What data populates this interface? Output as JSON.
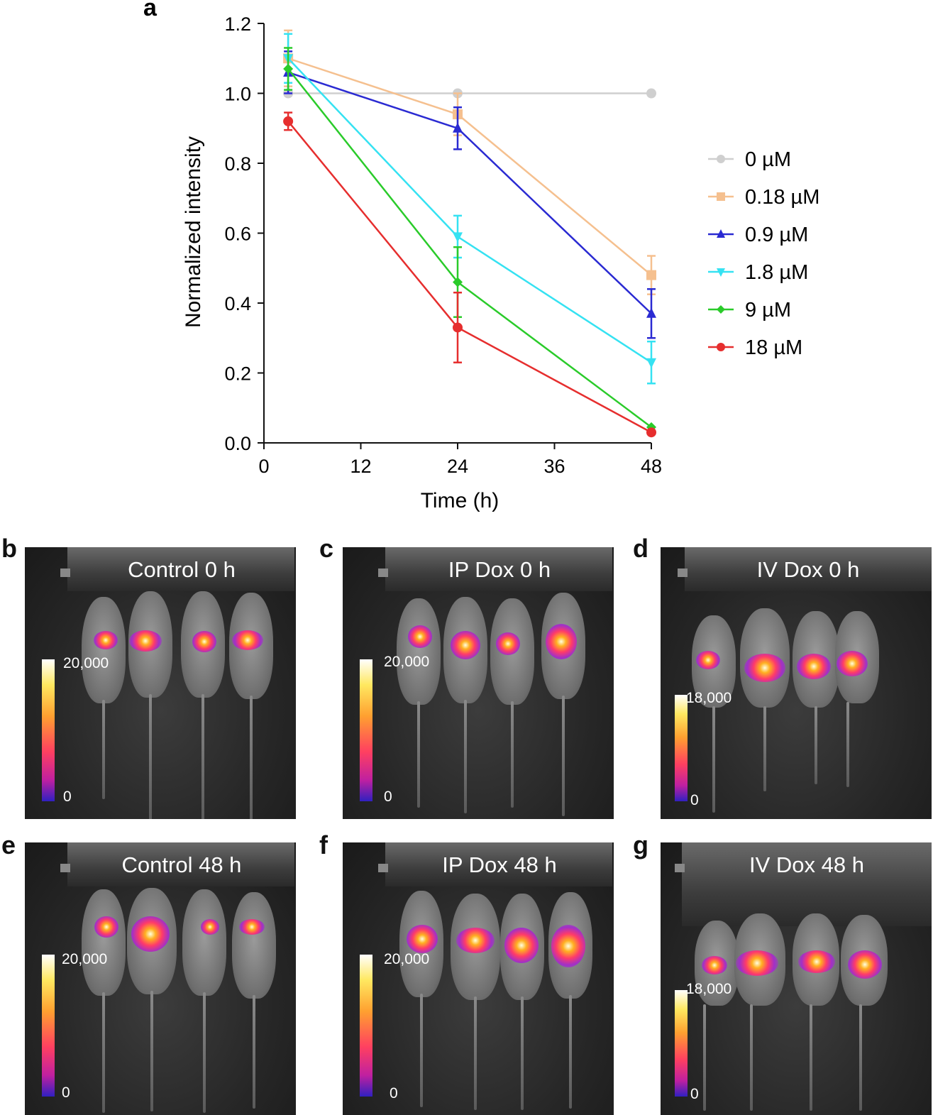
{
  "chart_data": {
    "type": "line",
    "panel_label": "a",
    "xlabel": "Time (h)",
    "ylabel": "Normalized intensity",
    "xlim": [
      0,
      48
    ],
    "ylim": [
      0,
      1.2
    ],
    "xticks": [
      "0",
      "12",
      "24",
      "36",
      "48"
    ],
    "yticks": [
      "0.0",
      "0.2",
      "0.4",
      "0.6",
      "0.8",
      "1.0",
      "1.2"
    ],
    "x": [
      3,
      24,
      48
    ],
    "series": [
      {
        "name": "0 µM",
        "color": "#cfcfcf",
        "marker": "circle",
        "values": [
          1.0,
          1.0,
          1.0
        ],
        "errors": [
          0.0,
          0.0,
          0.0
        ]
      },
      {
        "name": "0.18 µM",
        "color": "#f5c08f",
        "marker": "square",
        "values": [
          1.1,
          0.94,
          0.48
        ],
        "errors": [
          0.08,
          0.06,
          0.055
        ]
      },
      {
        "name": "0.9 µM",
        "color": "#2a2ad2",
        "marker": "triangle-up",
        "values": [
          1.06,
          0.9,
          0.37
        ],
        "errors": [
          0.06,
          0.06,
          0.07
        ]
      },
      {
        "name": "1.8 µM",
        "color": "#35e2f2",
        "marker": "triangle-down",
        "values": [
          1.1,
          0.59,
          0.23
        ],
        "errors": [
          0.07,
          0.06,
          0.06
        ]
      },
      {
        "name": "9 µM",
        "color": "#2acb2a",
        "marker": "diamond",
        "values": [
          1.07,
          0.46,
          0.045
        ],
        "errors": [
          0.06,
          0.1,
          0.0
        ]
      },
      {
        "name": "18 µM",
        "color": "#e62e2e",
        "marker": "circle",
        "values": [
          0.92,
          0.33,
          0.03
        ],
        "errors": [
          0.025,
          0.1,
          0.0
        ]
      }
    ]
  },
  "panels": [
    {
      "label": "b",
      "title": "Control 0 h",
      "scale_max": "20,000",
      "scale_min": "0"
    },
    {
      "label": "c",
      "title": "IP Dox 0 h",
      "scale_max": "20,000",
      "scale_min": "0"
    },
    {
      "label": "d",
      "title": "IV Dox 0 h",
      "scale_max": "18,000",
      "scale_min": "0"
    },
    {
      "label": "e",
      "title": "Control 48 h",
      "scale_max": "20,000",
      "scale_min": "0"
    },
    {
      "label": "f",
      "title": "IP Dox 48 h",
      "scale_max": "20,000",
      "scale_min": "0"
    },
    {
      "label": "g",
      "title": "IV Dox 48 h",
      "scale_max": "18,000",
      "scale_min": "0"
    }
  ]
}
